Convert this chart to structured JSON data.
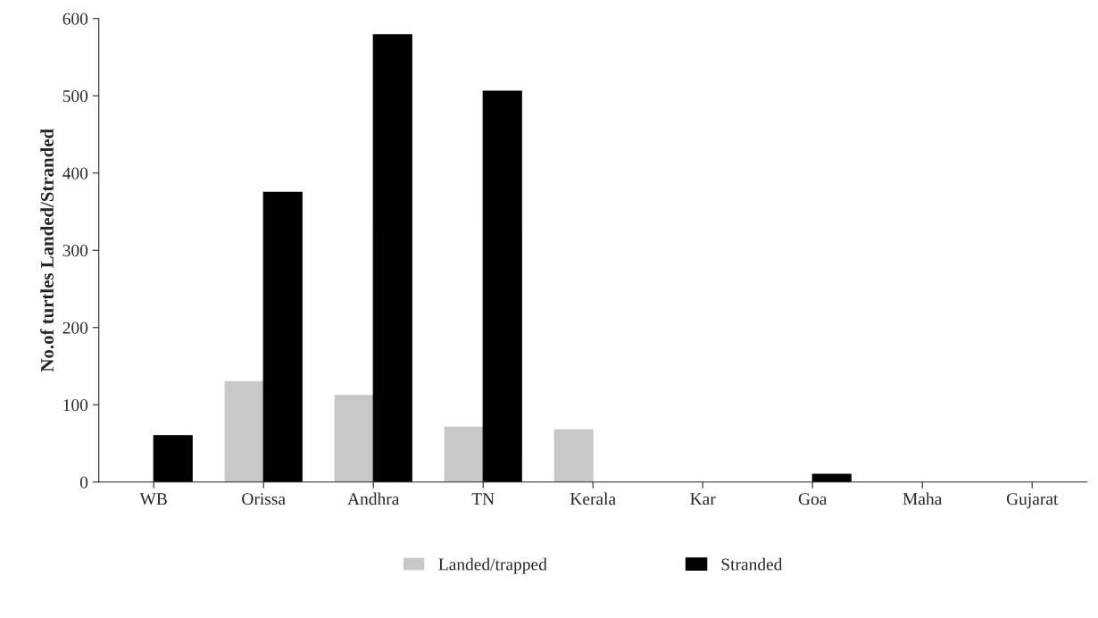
{
  "chart_data": {
    "type": "bar",
    "ylabel": "No.of turtles Landed/Stranded",
    "categories": [
      "WB",
      "Orissa",
      "Andhra",
      "TN",
      "Kerala",
      "Kar",
      "Goa",
      "Maha",
      "Gujarat"
    ],
    "series": [
      {
        "name": "Landed/trapped",
        "color": "#c8c8c8",
        "values": [
          0,
          130,
          112,
          71,
          68,
          0,
          0,
          0,
          0
        ]
      },
      {
        "name": "Stranded",
        "color": "#000000",
        "values": [
          60,
          375,
          579,
          506,
          0,
          0,
          10,
          0,
          0
        ]
      }
    ],
    "ylim": [
      0,
      600
    ],
    "yticks": [
      0,
      100,
      200,
      300,
      400,
      500,
      600
    ],
    "grid": false,
    "legend": "bottom"
  }
}
